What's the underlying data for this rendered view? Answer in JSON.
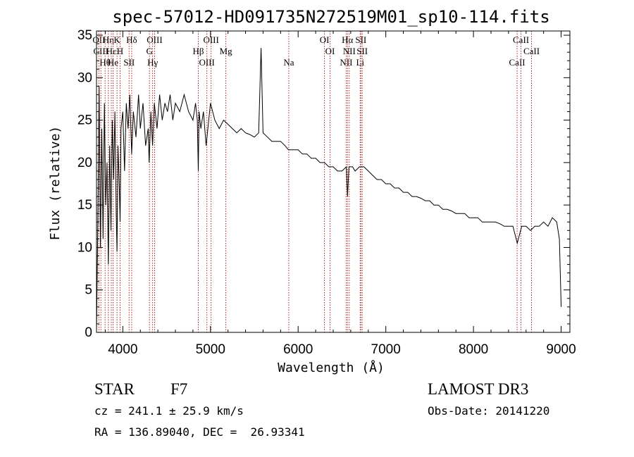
{
  "chart_data": {
    "type": "line",
    "title": "spec-57012-HD091735N272519M01_sp10-114.fits",
    "xlabel": "Wavelength (Å)",
    "ylabel": "Flux (relative)",
    "xlim": [
      3700,
      9100
    ],
    "ylim": [
      0,
      35.5
    ],
    "x_ticks": [
      4000,
      5000,
      6000,
      7000,
      8000,
      9000
    ],
    "x_tick_labels": [
      "4000",
      "5000",
      "6000",
      "7000",
      "8000",
      "9000"
    ],
    "y_ticks": [
      0,
      5,
      10,
      15,
      20,
      25,
      30,
      35
    ],
    "y_tick_labels": [
      "0",
      "5",
      "10",
      "15",
      "20",
      "25",
      "30",
      "35"
    ],
    "series": [
      {
        "name": "spectrum",
        "color": "#000000",
        "x": [
          3700,
          3715,
          3730,
          3745,
          3760,
          3775,
          3790,
          3805,
          3820,
          3835,
          3850,
          3865,
          3880,
          3895,
          3910,
          3925,
          3934,
          3945,
          3960,
          3969,
          3980,
          4000,
          4020,
          4040,
          4060,
          4080,
          4101,
          4120,
          4150,
          4180,
          4200,
          4230,
          4260,
          4290,
          4300,
          4320,
          4340,
          4360,
          4390,
          4420,
          4450,
          4480,
          4510,
          4540,
          4570,
          4600,
          4650,
          4700,
          4750,
          4800,
          4830,
          4850,
          4861,
          4870,
          4890,
          4920,
          4950,
          5000,
          5050,
          5100,
          5150,
          5200,
          5250,
          5300,
          5350,
          5400,
          5450,
          5500,
          5550,
          5577,
          5600,
          5650,
          5700,
          5750,
          5800,
          5850,
          5890,
          5950,
          6000,
          6050,
          6100,
          6150,
          6200,
          6250,
          6300,
          6350,
          6400,
          6450,
          6500,
          6550,
          6563,
          6580,
          6620,
          6650,
          6700,
          6750,
          6800,
          6850,
          6900,
          6950,
          7000,
          7050,
          7100,
          7150,
          7200,
          7250,
          7300,
          7350,
          7400,
          7450,
          7500,
          7550,
          7600,
          7650,
          7700,
          7750,
          7800,
          7850,
          7900,
          7950,
          8000,
          8050,
          8100,
          8150,
          8200,
          8250,
          8300,
          8350,
          8400,
          8450,
          8500,
          8550,
          8600,
          8650,
          8700,
          8750,
          8800,
          8850,
          8900,
          8950,
          8980,
          9000
        ],
        "values": [
          0.3,
          13,
          29,
          10,
          24,
          11,
          27,
          15,
          20,
          8,
          22,
          12,
          25,
          18,
          26,
          14,
          9.5,
          22,
          17,
          13,
          24,
          26,
          19,
          27,
          24,
          28,
          21,
          26,
          23,
          28,
          24,
          27,
          22,
          24,
          20,
          26,
          22,
          27,
          24,
          28,
          25,
          27,
          26,
          28,
          25,
          27,
          26,
          28,
          26,
          25,
          27,
          25,
          19,
          26,
          24,
          26,
          22,
          27,
          25,
          24,
          25,
          24.5,
          24,
          23.5,
          24,
          23.5,
          23.3,
          23,
          23.5,
          33.5,
          23.5,
          23,
          22.5,
          22.5,
          22.5,
          22,
          21.5,
          21.5,
          21.5,
          21,
          21,
          20.5,
          20.5,
          20,
          20,
          19.5,
          19.5,
          19,
          19,
          19.5,
          16,
          19.5,
          19.5,
          19,
          19.5,
          19.5,
          19,
          18.5,
          18,
          18,
          17.5,
          17.5,
          17,
          17,
          16.5,
          16.5,
          16,
          16,
          15.8,
          15.5,
          15.5,
          15,
          15,
          14.5,
          14.5,
          14.3,
          14,
          14,
          14,
          13.5,
          13.5,
          13.5,
          13,
          13,
          13,
          13,
          12.8,
          12.5,
          12.5,
          12.5,
          10.5,
          12.5,
          12.5,
          12,
          12.5,
          12.5,
          13,
          12.5,
          13.5,
          13,
          11,
          3
        ]
      }
    ],
    "line_markers": [
      {
        "wavelength": 3727,
        "labels": [
          "OII"
        ]
      },
      {
        "wavelength": 3750,
        "labels": [
          "CIII"
        ]
      },
      {
        "wavelength": 3798,
        "labels": [
          "Hθ"
        ]
      },
      {
        "wavelength": 3835,
        "labels": [
          "Hη"
        ]
      },
      {
        "wavelength": 3869,
        "labels": [
          "Hε"
        ]
      },
      {
        "wavelength": 3889,
        "labels": [
          "He"
        ]
      },
      {
        "wavelength": 3934,
        "labels": [
          "K"
        ]
      },
      {
        "wavelength": 3969,
        "labels": [
          "H"
        ]
      },
      {
        "wavelength": 4072,
        "labels": [
          "SII"
        ]
      },
      {
        "wavelength": 4101,
        "labels": [
          "Hδ"
        ]
      },
      {
        "wavelength": 4304,
        "labels": [
          "G"
        ]
      },
      {
        "wavelength": 4340,
        "labels": [
          "Hγ"
        ]
      },
      {
        "wavelength": 4363,
        "labels": [
          "OIII"
        ]
      },
      {
        "wavelength": 4861,
        "labels": [
          "Hβ"
        ]
      },
      {
        "wavelength": 4959,
        "labels": [
          "OIII"
        ]
      },
      {
        "wavelength": 5007,
        "labels": [
          "OIII"
        ]
      },
      {
        "wavelength": 5175,
        "labels": [
          "Mg"
        ]
      },
      {
        "wavelength": 5893,
        "labels": [
          "Na"
        ]
      },
      {
        "wavelength": 6300,
        "labels": [
          "OI"
        ]
      },
      {
        "wavelength": 6364,
        "labels": [
          "OI"
        ]
      },
      {
        "wavelength": 6548,
        "labels": [
          "NII"
        ]
      },
      {
        "wavelength": 6563,
        "labels": [
          "Hα"
        ]
      },
      {
        "wavelength": 6583,
        "labels": [
          "NII"
        ]
      },
      {
        "wavelength": 6708,
        "labels": [
          "Li"
        ]
      },
      {
        "wavelength": 6716,
        "labels": [
          "SII"
        ]
      },
      {
        "wavelength": 6731,
        "labels": [
          "SII"
        ]
      },
      {
        "wavelength": 8498,
        "labels": [
          "CaII"
        ]
      },
      {
        "wavelength": 8542,
        "labels": [
          "CaII"
        ]
      },
      {
        "wavelength": 8662,
        "labels": [
          "CaII"
        ]
      }
    ]
  },
  "info": {
    "object_class": "STAR",
    "subclass": "F7",
    "survey": "LAMOST DR3",
    "cz_line": "cz = 241.1 ± 25.9 km/s",
    "obs_date": "Obs-Date: 20141220",
    "radec_line": "RA = 136.89040, DEC =  26.93341"
  },
  "colors": {
    "spectrum": "#000000",
    "marker_line": "#b22222"
  }
}
